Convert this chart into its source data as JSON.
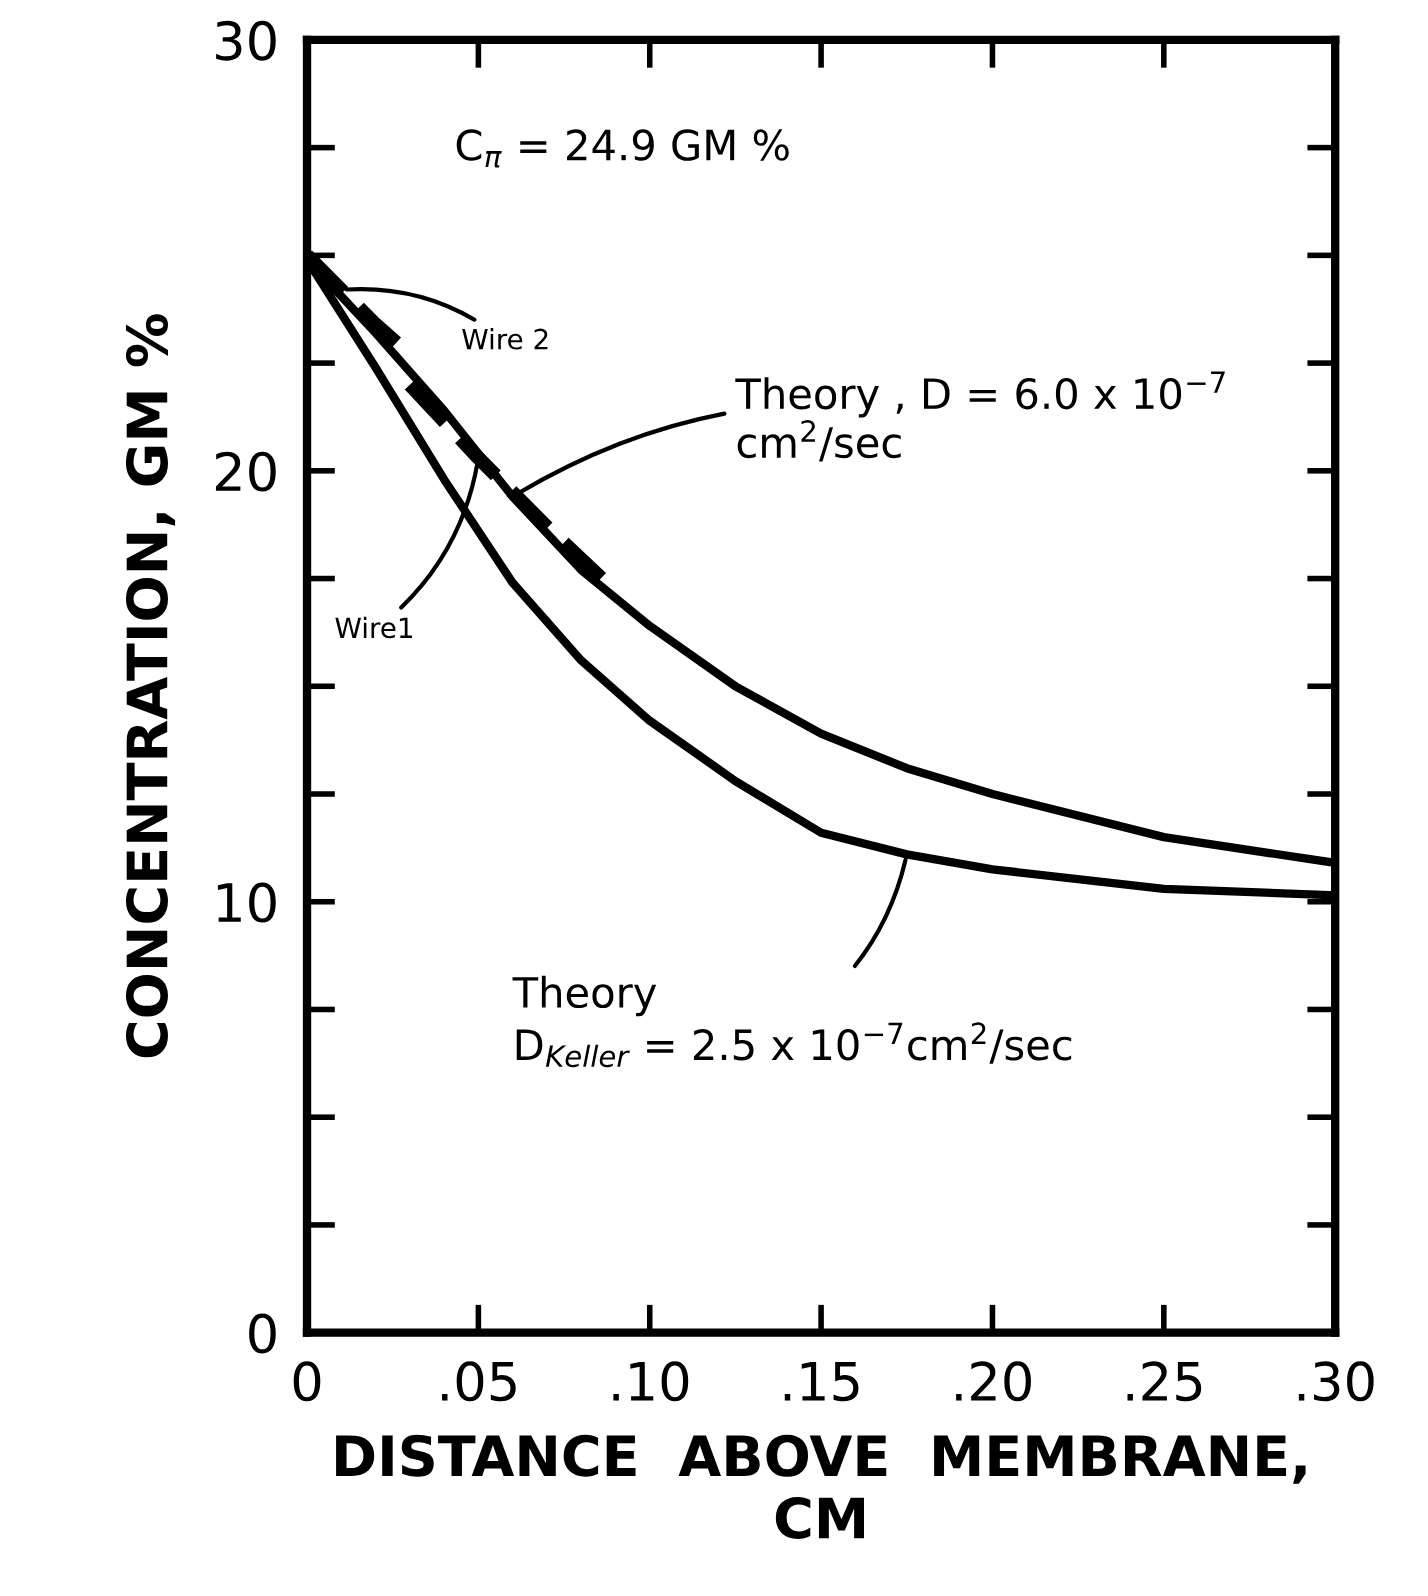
{
  "chart_data": {
    "type": "line",
    "xlabel": "DISTANCE  ABOVE  MEMBRANE,\nCM",
    "ylabel": "CONCENTRATION, GM %",
    "xlim": [
      0,
      0.3
    ],
    "ylim": [
      0,
      30
    ],
    "xticks": [
      {
        "value": 0,
        "label": "0"
      },
      {
        "value": 0.05,
        "label": ".05"
      },
      {
        "value": 0.1,
        "label": ".10"
      },
      {
        "value": 0.15,
        "label": ".15"
      },
      {
        "value": 0.2,
        "label": ".20"
      },
      {
        "value": 0.25,
        "label": ".25"
      },
      {
        "value": 0.3,
        "label": ".30"
      }
    ],
    "yticks": [
      0,
      {
        "value": 2.5,
        "label": null
      },
      {
        "value": 5,
        "label": null
      },
      {
        "value": 7.5,
        "label": null
      },
      10,
      {
        "value": 12.5,
        "label": null
      },
      {
        "value": 15,
        "label": null
      },
      {
        "value": 17.5,
        "label": null
      },
      20,
      {
        "value": 22.5,
        "label": null
      },
      {
        "value": 25,
        "label": null
      },
      {
        "value": 27.5,
        "label": null
      },
      30
    ],
    "grid": false,
    "marker": "none",
    "annotations": [
      "C$_{π}$ = 24.9 GM %"
    ],
    "series": [
      {
        "name": "Theory , D = 6.0 x 10$^{−7}$\ncm$^{2}$/sec",
        "color": "#000000",
        "line_style": "solid",
        "x": [
          0,
          0.02,
          0.04,
          0.06,
          0.08,
          0.1,
          0.125,
          0.15,
          0.175,
          0.2,
          0.25,
          0.3
        ],
        "values": [
          24.9,
          23.2,
          21.4,
          19.4,
          17.7,
          16.4,
          15.0,
          13.9,
          13.1,
          12.5,
          11.5,
          10.9
        ]
      },
      {
        "name": "Theory\nD$_{Keller}$ = 2.5 x 10$^{−7}$cm$^{2}$/sec",
        "color": "#000000",
        "line_style": "solid",
        "x": [
          0,
          0.02,
          0.04,
          0.06,
          0.08,
          0.1,
          0.125,
          0.15,
          0.175,
          0.2,
          0.25,
          0.3
        ],
        "values": [
          24.9,
          22.4,
          19.8,
          17.4,
          15.6,
          14.2,
          12.8,
          11.6,
          11.1,
          10.75,
          10.3,
          10.15
        ]
      },
      {
        "name": "Wire 2",
        "color": "#000000",
        "line_style": "dashed",
        "x": [
          0,
          0.01,
          0.02,
          0.03
        ],
        "values": [
          25.0,
          24.2,
          23.4,
          22.7
        ]
      },
      {
        "name": "Wire1",
        "color": "#000000",
        "line_style": "dashed",
        "x": [
          0.03,
          0.05,
          0.07,
          0.09
        ],
        "values": [
          22.0,
          20.3,
          18.7,
          17.2
        ]
      }
    ]
  }
}
